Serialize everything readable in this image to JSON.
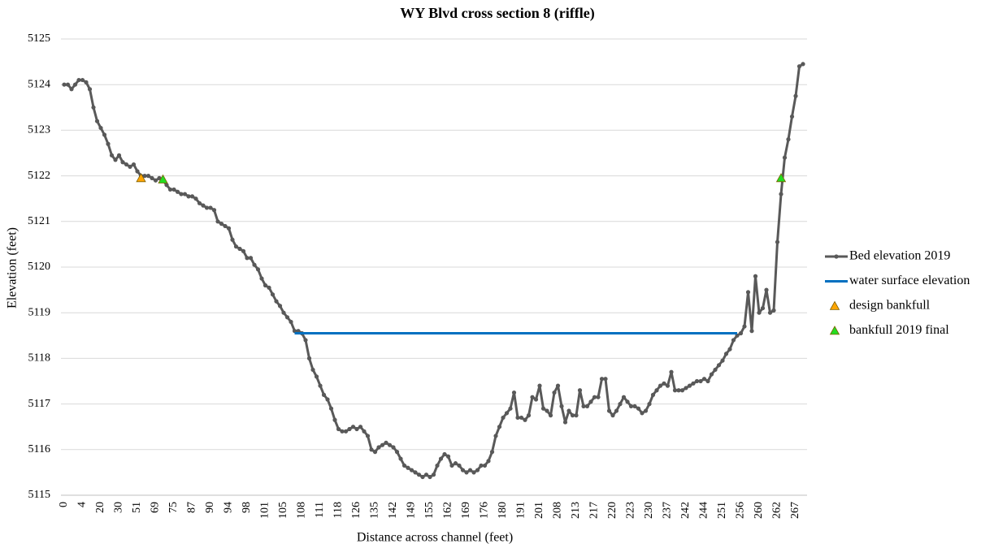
{
  "chart_data": {
    "type": "line",
    "title": "WY Blvd cross section 8 (riffle)",
    "x_label": "Distance across channel (feet)",
    "y_label": "Elevation (feet)",
    "categories": [
      "0",
      null,
      null,
      null,
      null,
      "4",
      null,
      null,
      null,
      null,
      "20",
      null,
      null,
      null,
      null,
      "30",
      null,
      null,
      null,
      null,
      "51",
      null,
      null,
      null,
      null,
      "69",
      null,
      null,
      null,
      null,
      "75",
      null,
      null,
      null,
      null,
      "87",
      null,
      null,
      null,
      null,
      "90",
      null,
      null,
      null,
      null,
      "94",
      null,
      null,
      null,
      null,
      "98",
      null,
      null,
      null,
      null,
      "101",
      null,
      null,
      null,
      null,
      "105",
      null,
      null,
      null,
      null,
      "108",
      null,
      null,
      null,
      null,
      "111",
      null,
      null,
      null,
      null,
      "118",
      null,
      null,
      null,
      null,
      "126",
      null,
      null,
      null,
      null,
      "135",
      null,
      null,
      null,
      null,
      "142",
      null,
      null,
      null,
      null,
      "149",
      null,
      null,
      null,
      null,
      "155",
      null,
      null,
      null,
      null,
      "162",
      null,
      null,
      null,
      null,
      "169",
      null,
      null,
      null,
      null,
      "176",
      null,
      null,
      null,
      null,
      "180",
      null,
      null,
      null,
      null,
      "191",
      null,
      null,
      null,
      null,
      "201",
      null,
      null,
      null,
      null,
      "208",
      null,
      null,
      null,
      null,
      "213",
      null,
      null,
      null,
      null,
      "217",
      null,
      null,
      null,
      null,
      "220",
      null,
      null,
      null,
      null,
      "223",
      null,
      null,
      null,
      null,
      "230",
      null,
      null,
      null,
      null,
      "237",
      null,
      null,
      null,
      null,
      "242",
      null,
      null,
      null,
      null,
      "244",
      null,
      null,
      null,
      null,
      "251",
      null,
      null,
      null,
      null,
      "256",
      null,
      null,
      null,
      null,
      "260",
      null,
      null,
      null,
      null,
      "262",
      null,
      null,
      null,
      null,
      "267",
      null,
      null
    ],
    "series": [
      {
        "name": "Bed elevation 2019",
        "color": "#595959",
        "line": true,
        "marker": "circle",
        "values": [
          5124.0,
          5124.0,
          5123.9,
          5124.0,
          5124.1,
          5124.1,
          5124.05,
          5123.9,
          5123.5,
          5123.2,
          5123.05,
          5122.9,
          5122.7,
          5122.45,
          5122.35,
          5122.45,
          5122.3,
          5122.25,
          5122.2,
          5122.25,
          5122.1,
          5122.0,
          5122.0,
          5122.0,
          5121.95,
          5121.9,
          5121.95,
          5121.9,
          5121.8,
          5121.7,
          5121.7,
          5121.65,
          5121.6,
          5121.6,
          5121.55,
          5121.55,
          5121.5,
          5121.4,
          5121.35,
          5121.3,
          5121.3,
          5121.25,
          5121.0,
          5120.95,
          5120.9,
          5120.85,
          5120.6,
          5120.45,
          5120.4,
          5120.35,
          5120.2,
          5120.2,
          5120.05,
          5119.95,
          5119.75,
          5119.6,
          5119.55,
          5119.4,
          5119.25,
          5119.15,
          5119.0,
          5118.9,
          5118.8,
          5118.6,
          5118.6,
          5118.55,
          5118.4,
          5118.0,
          5117.75,
          5117.6,
          5117.4,
          5117.2,
          5117.1,
          5116.9,
          5116.65,
          5116.45,
          5116.4,
          5116.4,
          5116.45,
          5116.5,
          5116.45,
          5116.5,
          5116.4,
          5116.3,
          5116.0,
          5115.95,
          5116.05,
          5116.1,
          5116.15,
          5116.1,
          5116.05,
          5115.95,
          5115.8,
          5115.65,
          5115.6,
          5115.55,
          5115.5,
          5115.45,
          5115.4,
          5115.45,
          5115.4,
          5115.45,
          5115.65,
          5115.8,
          5115.9,
          5115.85,
          5115.65,
          5115.7,
          5115.65,
          5115.55,
          5115.5,
          5115.55,
          5115.5,
          5115.55,
          5115.65,
          5115.65,
          5115.75,
          5115.95,
          5116.3,
          5116.5,
          5116.7,
          5116.8,
          5116.9,
          5117.25,
          5116.7,
          5116.7,
          5116.65,
          5116.75,
          5117.15,
          5117.1,
          5117.4,
          5116.9,
          5116.85,
          5116.75,
          5117.25,
          5117.4,
          5116.95,
          5116.6,
          5116.85,
          5116.75,
          5116.75,
          5117.3,
          5116.95,
          5116.95,
          5117.05,
          5117.15,
          5117.15,
          5117.55,
          5117.55,
          5116.85,
          5116.75,
          5116.85,
          5117.0,
          5117.15,
          5117.05,
          5116.95,
          5116.95,
          5116.9,
          5116.8,
          5116.85,
          5117.0,
          5117.2,
          5117.3,
          5117.4,
          5117.45,
          5117.4,
          5117.7,
          5117.3,
          5117.3,
          5117.3,
          5117.35,
          5117.4,
          5117.45,
          5117.5,
          5117.5,
          5117.55,
          5117.5,
          5117.65,
          5117.75,
          5117.85,
          5117.95,
          5118.1,
          5118.2,
          5118.4,
          5118.5,
          5118.55,
          5118.7,
          5119.45,
          5118.6,
          5119.8,
          5119.0,
          5119.1,
          5119.5,
          5119.0,
          5119.05,
          5120.55,
          5121.6,
          5122.4,
          5122.8,
          5123.3,
          5123.75,
          5124.4,
          5124.45
        ]
      },
      {
        "name": "water surface elevation",
        "color": "#0070c0",
        "line": true,
        "marker": "none",
        "values": [
          null,
          null,
          null,
          null,
          null,
          null,
          null,
          null,
          null,
          null,
          null,
          null,
          null,
          null,
          null,
          null,
          null,
          null,
          null,
          null,
          null,
          null,
          null,
          null,
          null,
          null,
          null,
          null,
          null,
          null,
          null,
          null,
          null,
          null,
          null,
          null,
          null,
          null,
          null,
          null,
          null,
          null,
          null,
          null,
          null,
          null,
          null,
          null,
          null,
          null,
          null,
          null,
          null,
          null,
          null,
          null,
          null,
          null,
          null,
          null,
          null,
          null,
          null,
          5118.55,
          5118.55,
          5118.55,
          5118.55,
          5118.55,
          5118.55,
          5118.55,
          5118.55,
          5118.55,
          5118.55,
          5118.55,
          5118.55,
          5118.55,
          5118.55,
          5118.55,
          5118.55,
          5118.55,
          5118.55,
          5118.55,
          5118.55,
          5118.55,
          5118.55,
          5118.55,
          5118.55,
          5118.55,
          5118.55,
          5118.55,
          5118.55,
          5118.55,
          5118.55,
          5118.55,
          5118.55,
          5118.55,
          5118.55,
          5118.55,
          5118.55,
          5118.55,
          5118.55,
          5118.55,
          5118.55,
          5118.55,
          5118.55,
          5118.55,
          5118.55,
          5118.55,
          5118.55,
          5118.55,
          5118.55,
          5118.55,
          5118.55,
          5118.55,
          5118.55,
          5118.55,
          5118.55,
          5118.55,
          5118.55,
          5118.55,
          5118.55,
          5118.55,
          5118.55,
          5118.55,
          5118.55,
          5118.55,
          5118.55,
          5118.55,
          5118.55,
          5118.55,
          5118.55,
          5118.55,
          5118.55,
          5118.55,
          5118.55,
          5118.55,
          5118.55,
          5118.55,
          5118.55,
          5118.55,
          5118.55,
          5118.55,
          5118.55,
          5118.55,
          5118.55,
          5118.55,
          5118.55,
          5118.55,
          5118.55,
          5118.55,
          5118.55,
          5118.55,
          5118.55,
          5118.55,
          5118.55,
          5118.55,
          5118.55,
          5118.55,
          5118.55,
          5118.55,
          5118.55,
          5118.55,
          5118.55,
          5118.55,
          5118.55,
          5118.55,
          5118.55,
          5118.55,
          5118.55,
          5118.55,
          5118.55,
          5118.55,
          5118.55,
          5118.55,
          5118.55,
          5118.55,
          5118.55,
          5118.55,
          5118.55,
          5118.55,
          5118.55,
          5118.55,
          5118.55,
          5118.55,
          5118.55,
          null,
          null,
          null,
          null,
          null,
          null,
          null,
          null,
          null,
          null,
          null,
          null,
          null,
          null,
          null,
          null,
          null,
          null
        ]
      },
      {
        "name": "design bankfull",
        "color": "#ffa500",
        "line": false,
        "marker": "triangle",
        "values": [
          null,
          null,
          null,
          null,
          null,
          null,
          null,
          null,
          null,
          null,
          null,
          null,
          null,
          null,
          null,
          null,
          null,
          null,
          null,
          null,
          null,
          5121.95,
          null,
          null,
          null,
          null,
          null,
          null,
          null,
          null,
          null,
          null,
          null,
          null,
          null,
          null,
          null,
          null,
          null,
          null,
          null,
          null,
          null,
          null,
          null,
          null,
          null,
          null,
          null,
          null,
          null,
          null,
          null,
          null,
          null,
          null,
          null,
          null,
          null,
          null,
          null,
          null,
          null,
          null,
          null,
          null,
          null,
          null,
          null,
          null,
          null,
          null,
          null,
          null,
          null,
          null,
          null,
          null,
          null,
          null,
          null,
          null,
          null,
          null,
          null,
          null,
          null,
          null,
          null,
          null,
          null,
          null,
          null,
          null,
          null,
          null,
          null,
          null,
          null,
          null,
          null,
          null,
          null,
          null,
          null,
          null,
          null,
          null,
          null,
          null,
          null,
          null,
          null,
          null,
          null,
          null,
          null,
          null,
          null,
          null,
          null,
          null,
          null,
          null,
          null,
          null,
          null,
          null,
          null,
          null,
          null,
          null,
          null,
          null,
          null,
          null,
          null,
          null,
          null,
          null,
          null,
          null,
          null,
          null,
          null,
          null,
          null,
          null,
          null,
          null,
          null,
          null,
          null,
          null,
          null,
          null,
          null,
          null,
          null,
          null,
          null,
          null,
          null,
          null,
          null,
          null,
          null,
          null,
          null,
          null,
          null,
          null,
          null,
          null,
          null,
          null,
          null,
          null,
          null,
          null,
          null,
          null,
          null,
          null,
          null,
          null,
          null,
          null,
          null,
          null,
          null,
          null,
          null,
          null,
          null,
          null,
          null,
          null,
          null,
          null,
          null,
          null,
          null
        ]
      },
      {
        "name": "bankfull 2019 final",
        "color": "#22dd22",
        "line": false,
        "marker": "triangle",
        "values": [
          null,
          null,
          null,
          null,
          null,
          null,
          null,
          null,
          null,
          null,
          null,
          null,
          null,
          null,
          null,
          null,
          null,
          null,
          null,
          null,
          null,
          null,
          null,
          null,
          null,
          null,
          null,
          5121.92,
          null,
          null,
          null,
          null,
          null,
          null,
          null,
          null,
          null,
          null,
          null,
          null,
          null,
          null,
          null,
          null,
          null,
          null,
          null,
          null,
          null,
          null,
          null,
          null,
          null,
          null,
          null,
          null,
          null,
          null,
          null,
          null,
          null,
          null,
          null,
          null,
          null,
          null,
          null,
          null,
          null,
          null,
          null,
          null,
          null,
          null,
          null,
          null,
          null,
          null,
          null,
          null,
          null,
          null,
          null,
          null,
          null,
          null,
          null,
          null,
          null,
          null,
          null,
          null,
          null,
          null,
          null,
          null,
          null,
          null,
          null,
          null,
          null,
          null,
          null,
          null,
          null,
          null,
          null,
          null,
          null,
          null,
          null,
          null,
          null,
          null,
          null,
          null,
          null,
          null,
          null,
          null,
          null,
          null,
          null,
          null,
          null,
          null,
          null,
          null,
          null,
          null,
          null,
          null,
          null,
          null,
          null,
          null,
          null,
          null,
          null,
          null,
          null,
          null,
          null,
          null,
          null,
          null,
          null,
          null,
          null,
          null,
          null,
          null,
          null,
          null,
          null,
          null,
          null,
          null,
          null,
          null,
          null,
          null,
          null,
          null,
          null,
          null,
          null,
          null,
          null,
          null,
          null,
          null,
          null,
          null,
          null,
          null,
          null,
          null,
          null,
          null,
          null,
          null,
          null,
          null,
          null,
          null,
          null,
          null,
          null,
          null,
          null,
          null,
          null,
          null,
          null,
          null,
          5121.95,
          null,
          null,
          null,
          null,
          null,
          null
        ]
      }
    ],
    "ylim": [
      5115,
      5125
    ],
    "yticks": [
      5115,
      5116,
      5117,
      5118,
      5119,
      5120,
      5121,
      5122,
      5123,
      5124,
      5125
    ],
    "grid": true,
    "legend": "right"
  }
}
